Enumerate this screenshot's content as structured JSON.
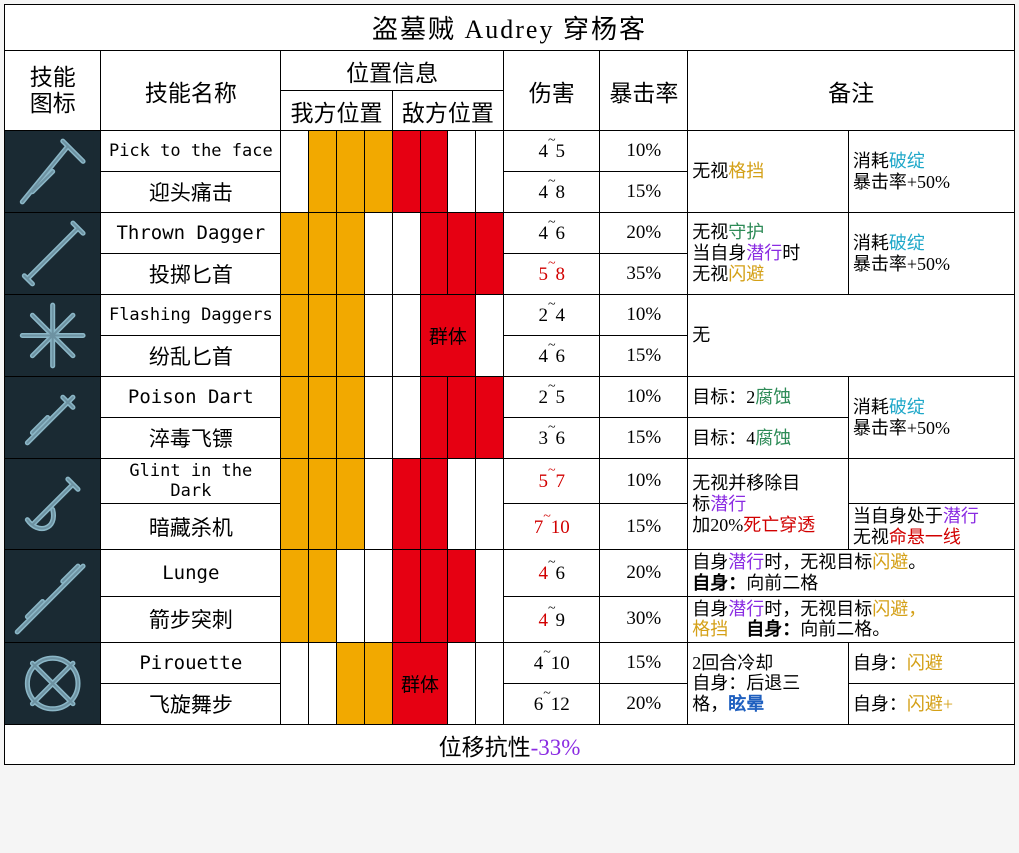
{
  "title": "盗墓贼 Audrey 穿杨客",
  "headers": {
    "icon": "技能\n图标",
    "name": "技能名称",
    "pos_info": "位置信息",
    "ally_pos": "我方位置",
    "enemy_pos": "敌方位置",
    "damage": "伤害",
    "crit": "暴击率",
    "notes": "备注"
  },
  "skills": [
    {
      "name_en": "Pick to the face",
      "name_cn": "迎头痛击",
      "ally": [
        false,
        true,
        true,
        true
      ],
      "enemy": [
        true,
        true,
        false,
        false
      ],
      "group": false,
      "dmg1": {
        "lo": "4",
        "hi": "5",
        "red": false
      },
      "dmg2": {
        "lo": "4",
        "hi": "8",
        "red": false
      },
      "crit1": "10%",
      "crit2": "15%",
      "note1_html": "无视<span class='c-yellow'>格挡</span>",
      "note1_rowspan": 2,
      "note2_html": "消耗<span class='c-cyan'>破绽</span><br>暴击率+50%",
      "note2_rowspan": 2
    },
    {
      "name_en": "Thrown Dagger",
      "name_cn": "投掷匕首",
      "ally": [
        true,
        true,
        true,
        false
      ],
      "enemy": [
        false,
        true,
        true,
        true
      ],
      "group": false,
      "dmg1": {
        "lo": "4",
        "hi": "6",
        "red": false
      },
      "dmg2": {
        "lo": "5",
        "hi": "8",
        "red": true
      },
      "crit1": "20%",
      "crit2": "35%",
      "note1_html": "无视<span class='c-green'>守护</span><br>当自身<span class='c-purple'>潜行</span>时<br>无视<span class='c-yellow'>闪避</span>",
      "note1_rowspan": 2,
      "note2_html": "消耗<span class='c-cyan'>破绽</span><br>暴击率+50%",
      "note2_rowspan": 2
    },
    {
      "name_en": "Flashing Daggers",
      "name_cn": "纷乱匕首",
      "ally": [
        true,
        true,
        true,
        false
      ],
      "enemy": [
        false,
        true,
        true,
        false
      ],
      "group": true,
      "dmg1": {
        "lo": "2",
        "hi": "4",
        "red": false
      },
      "dmg2": {
        "lo": "4",
        "hi": "6",
        "red": false
      },
      "crit1": "10%",
      "crit2": "15%",
      "note1_html": "无",
      "note1_colspan": 2,
      "note1_rowspan": 2
    },
    {
      "name_en": "Poison Dart",
      "name_cn": "淬毒飞镖",
      "ally": [
        true,
        true,
        true,
        false
      ],
      "enemy": [
        false,
        true,
        true,
        true
      ],
      "group": false,
      "dmg1": {
        "lo": "2",
        "hi": "5",
        "red": false
      },
      "dmg2": {
        "lo": "3",
        "hi": "6",
        "red": false
      },
      "crit1": "10%",
      "crit2": "15%",
      "note1a_html": "目标：2<span class='c-green'>腐蚀</span>",
      "note1b_html": "目标：4<span class='c-green'>腐蚀</span>",
      "note2_html": "消耗<span class='c-cyan'>破绽</span><br>暴击率+50%",
      "note2_rowspan": 2
    },
    {
      "name_en": "Glint in the Dark",
      "name_cn": "暗藏杀机",
      "ally": [
        true,
        true,
        true,
        false
      ],
      "enemy": [
        true,
        true,
        false,
        false
      ],
      "group": false,
      "dmg1": {
        "lo": "5",
        "hi": "7",
        "red": true
      },
      "dmg2": {
        "lo": "7",
        "hi": "10",
        "red": true
      },
      "crit1": "10%",
      "crit2": "15%",
      "note1_html": "无视并移除目<br>标<span class='c-purple'>潜行</span><br>加20%<span class='c-red'>死亡穿透</span>",
      "note1_rowspan": 2,
      "note2a_html": "",
      "note2b_html": "当自身处于<span class='c-purple'>潜行</span><br>无视<span class='c-red'>命悬一线</span>"
    },
    {
      "name_en": "Lunge",
      "name_cn": "箭步突刺",
      "ally": [
        true,
        true,
        false,
        false
      ],
      "enemy": [
        true,
        true,
        true,
        false
      ],
      "group": false,
      "dmg1": {
        "lo": "4",
        "hi": "6",
        "red": false,
        "lo_red": true
      },
      "dmg2": {
        "lo": "4",
        "hi": "9",
        "red": false,
        "lo_red": true
      },
      "crit1": "20%",
      "crit2": "30%",
      "full1_html": "自身<span class='c-purple'>潜行</span>时，无视目标<span class='c-yellow'>闪避</span>。<br><b>自身：</b>向前二格",
      "full2_html": "自身<span class='c-purple'>潜行</span>时，无视目标<span class='c-yellow'>闪避，<br>格挡</span>　<b>自身：</b>向前二格。"
    },
    {
      "name_en": "Pirouette",
      "name_cn": "飞旋舞步",
      "ally": [
        false,
        false,
        true,
        true
      ],
      "enemy": [
        true,
        true,
        false,
        false
      ],
      "group": true,
      "dmg1": {
        "lo": "4",
        "hi": "10",
        "red": false
      },
      "dmg2": {
        "lo": "6",
        "hi": "12",
        "red": false
      },
      "crit1": "15%",
      "crit2": "20%",
      "note1_html": "2回合冷却<br>自身：后退三<br>格，<span class='c-blue'><b>眩晕</b></span>",
      "note1_rowspan": 2,
      "note2a_html": "自身：<span class='c-yellow'>闪避</span>",
      "note2b_html": "自身：<span class='c-yellow'>闪避+</span>"
    }
  ],
  "footer": {
    "label": "位移抗性",
    "value": "-33%"
  },
  "group_label": "群体",
  "icon_colors": {
    "bg": "#1a2a33",
    "line": "#8bb7c7",
    "line2": "#5a7a88"
  }
}
